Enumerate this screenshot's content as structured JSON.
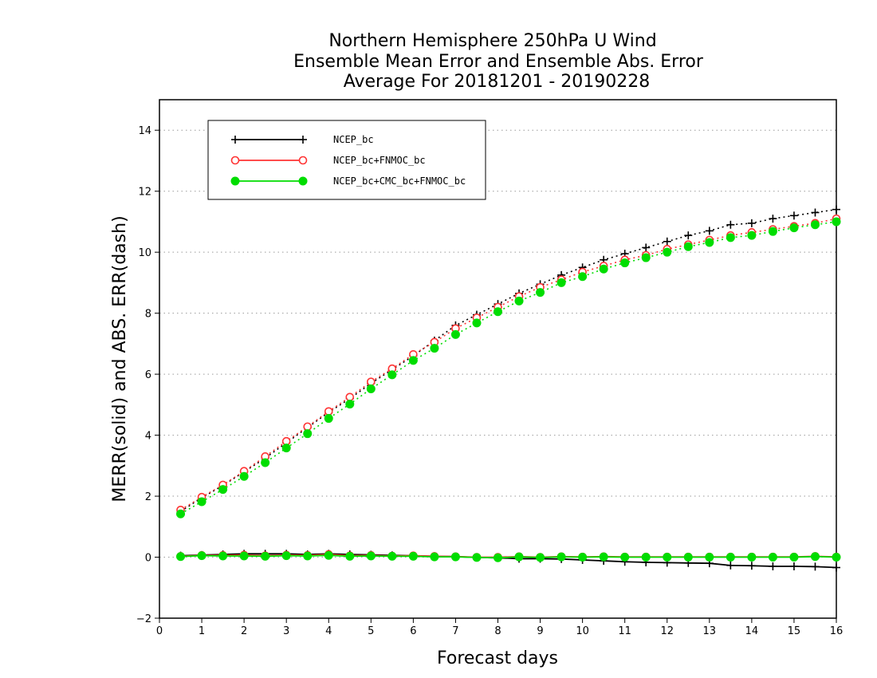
{
  "chart_data": {
    "type": "line",
    "title": [
      "Northern Hemisphere 250hPa U Wind",
      "Ensemble Mean Error and Ensemble Abs. Error",
      "Average For 20181201 - 20190228"
    ],
    "xlabel": "Forecast days",
    "ylabel": "MERR(solid) and ABS. ERR(dash)",
    "xlim": [
      0,
      16
    ],
    "ylim": [
      -2,
      15
    ],
    "xticks": [
      0,
      1,
      2,
      3,
      4,
      5,
      6,
      7,
      8,
      9,
      10,
      11,
      12,
      13,
      14,
      15,
      16
    ],
    "yticks": [
      -2,
      0,
      2,
      4,
      6,
      8,
      10,
      12,
      14
    ],
    "grid": "horizontal-dotted",
    "legend_position": "top-left",
    "x": [
      0.5,
      1,
      1.5,
      2,
      2.5,
      3,
      3.5,
      4,
      4.5,
      5,
      5.5,
      6,
      6.5,
      7,
      7.5,
      8,
      8.5,
      9,
      9.5,
      10,
      10.5,
      11,
      11.5,
      12,
      12.5,
      13,
      13.5,
      14,
      14.5,
      15,
      15.5,
      16
    ],
    "series": [
      {
        "name": "NCEP_bc",
        "color": "#000000",
        "marker": "plus",
        "abs_err": [
          1.5,
          1.95,
          2.35,
          2.8,
          3.25,
          3.75,
          4.25,
          4.75,
          5.2,
          5.7,
          6.15,
          6.6,
          7.1,
          7.6,
          7.95,
          8.3,
          8.65,
          8.95,
          9.25,
          9.5,
          9.75,
          9.95,
          10.15,
          10.35,
          10.55,
          10.7,
          10.9,
          10.95,
          11.1,
          11.2,
          11.3,
          11.4
        ],
        "mean_err": [
          0.05,
          0.07,
          0.09,
          0.11,
          0.11,
          0.11,
          0.09,
          0.11,
          0.09,
          0.08,
          0.06,
          0.05,
          0.03,
          0.02,
          -0.01,
          -0.02,
          -0.05,
          -0.05,
          -0.06,
          -0.09,
          -0.12,
          -0.15,
          -0.17,
          -0.18,
          -0.19,
          -0.2,
          -0.27,
          -0.28,
          -0.3,
          -0.3,
          -0.31,
          -0.34
        ]
      },
      {
        "name": "NCEP_bc+FNMOC_bc",
        "color": "#ff3333",
        "marker": "open-circle",
        "abs_err": [
          1.55,
          1.97,
          2.37,
          2.82,
          3.3,
          3.8,
          4.28,
          4.78,
          5.25,
          5.75,
          6.18,
          6.65,
          7.05,
          7.5,
          7.85,
          8.2,
          8.55,
          8.85,
          9.1,
          9.35,
          9.55,
          9.75,
          9.9,
          10.1,
          10.25,
          10.4,
          10.55,
          10.65,
          10.75,
          10.85,
          10.95,
          11.1
        ],
        "mean_err": [
          0.03,
          0.06,
          0.06,
          0.07,
          0.05,
          0.07,
          0.06,
          0.09,
          0.05,
          0.06,
          0.04,
          0.05,
          0.03,
          0.02,
          0.0,
          0.0,
          0.02,
          0.0,
          0.02,
          0.01,
          0.02,
          0.01,
          0.01,
          0.01,
          0.01,
          0.01,
          0.01,
          0.01,
          0.01,
          0.01,
          0.03,
          0.01
        ]
      },
      {
        "name": "NCEP_bc+CMC_bc+FNMOC_bc",
        "color": "#00dd00",
        "marker": "filled-circle",
        "abs_err": [
          1.42,
          1.82,
          2.22,
          2.65,
          3.1,
          3.58,
          4.05,
          4.55,
          5.02,
          5.52,
          5.98,
          6.45,
          6.85,
          7.3,
          7.68,
          8.05,
          8.4,
          8.68,
          9.0,
          9.2,
          9.45,
          9.65,
          9.82,
          10.0,
          10.18,
          10.32,
          10.48,
          10.55,
          10.68,
          10.8,
          10.9,
          11.0
        ],
        "mean_err": [
          0.02,
          0.05,
          0.04,
          0.04,
          0.03,
          0.05,
          0.04,
          0.06,
          0.03,
          0.04,
          0.03,
          0.03,
          0.01,
          0.01,
          -0.01,
          -0.02,
          0.01,
          -0.01,
          0.01,
          0.0,
          0.01,
          0.0,
          0.0,
          0.0,
          0.0,
          0.0,
          0.0,
          0.0,
          0.0,
          0.0,
          0.02,
          0.0
        ]
      }
    ]
  }
}
